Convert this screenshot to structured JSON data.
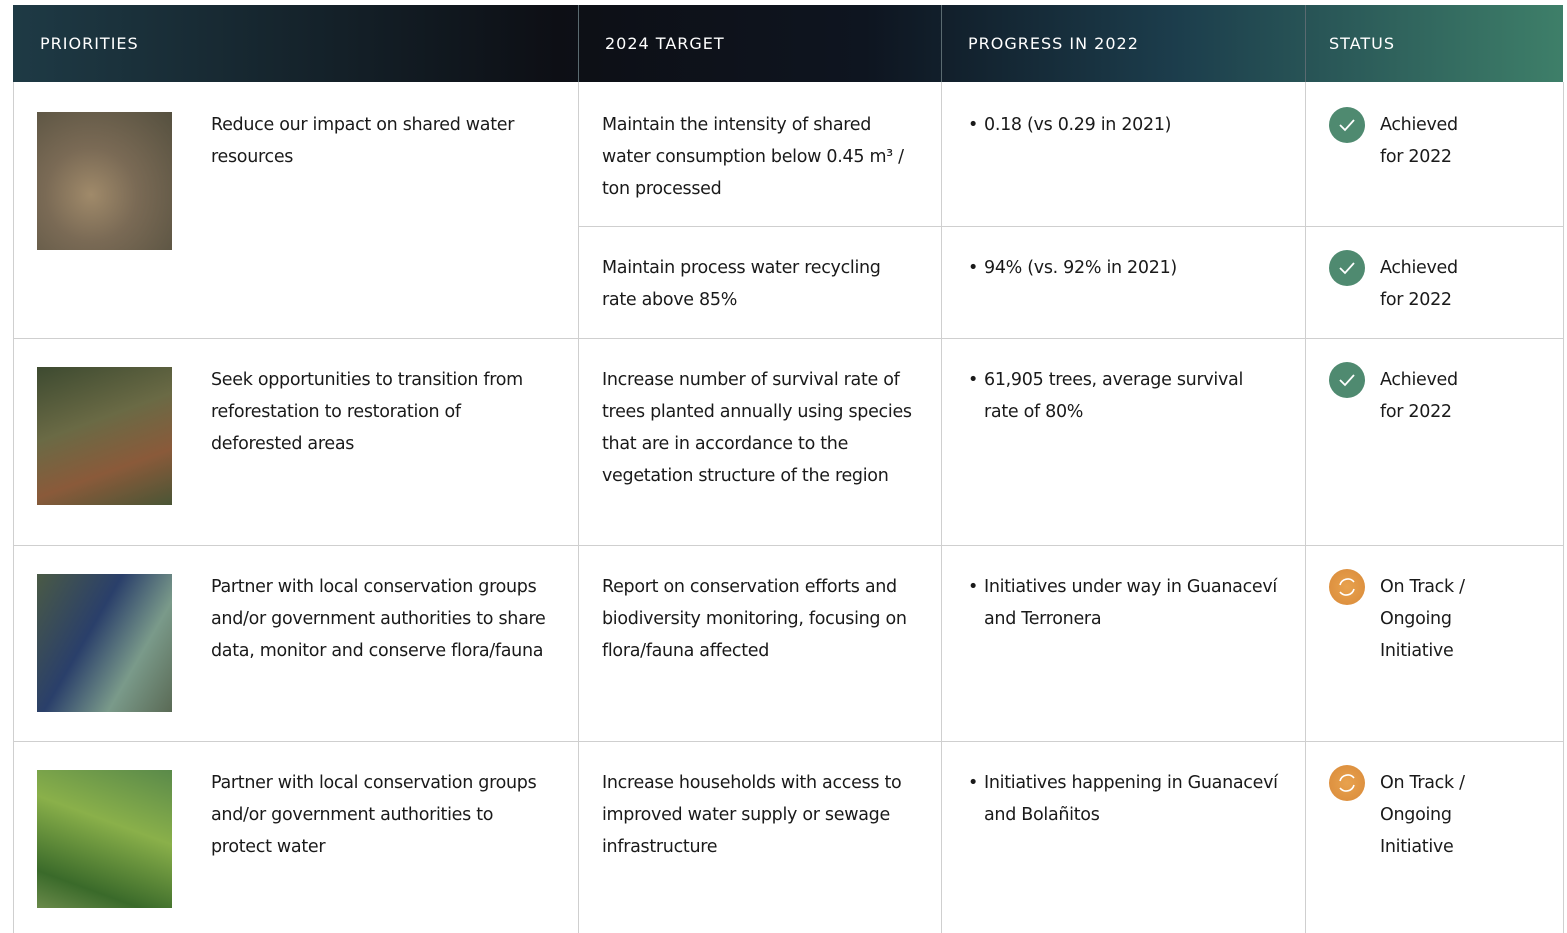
{
  "header": {
    "columns": [
      "PRIORITIES",
      "2024 TARGET",
      "PROGRESS IN 2022",
      "STATUS"
    ]
  },
  "table": {
    "rows": [
      {
        "priority": "Reduce our impact on shared water resources",
        "targets": [
          {
            "target": "Maintain the intensity of shared water consumption below 0.45 m³ / ton processed",
            "progress": "0.18 (vs 0.29 in 2021)",
            "status": "Achieved for 2022"
          },
          {
            "target": "Maintain process water recycling rate above 85%",
            "progress": "94% (vs. 92% in 2021)",
            "status": "Achieved for 2022"
          }
        ]
      },
      {
        "priority": "Seek opportunities to transition from reforestation to restoration of deforested areas",
        "targets": [
          {
            "target": "Increase number of survival rate of trees planted annually using species that are in accordance to the vegetation structure of the region",
            "progress": "61,905 trees, average survival rate of 80%",
            "status": "Achieved for 2022"
          }
        ]
      },
      {
        "priority": "Partner with local conservation groups and/or government authorities to share data, monitor and conserve flora/fauna",
        "targets": [
          {
            "target": "Report on conservation efforts and biodiversity monitoring, focusing on flora/fauna affected",
            "progress": "Initiatives under way in Guanaceví and Terronera",
            "status": "On Track / Ongoing Initiative"
          }
        ]
      },
      {
        "priority": "Partner with local conservation groups and/or government authorities to protect water",
        "targets": [
          {
            "target": "Increase households with access to improved water supply or sewage infrastructure",
            "progress": "Initiatives happening in Guanaceví and Bolañitos",
            "status": "On Track / Ongoing Initiative"
          }
        ]
      }
    ]
  }
}
